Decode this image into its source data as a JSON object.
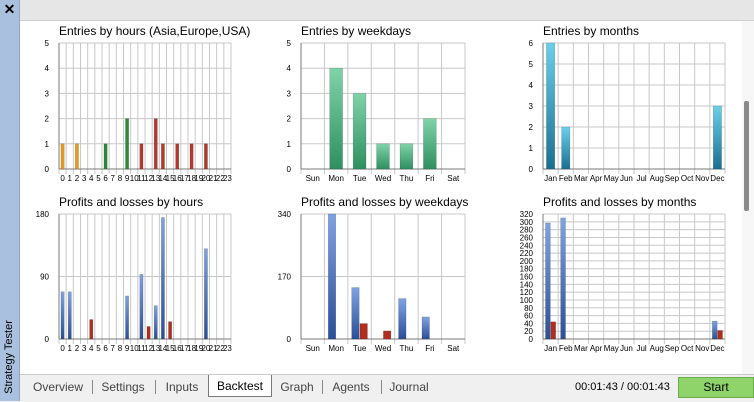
{
  "window": {
    "title": "Strategy Tester",
    "close_glyph": "✕"
  },
  "tabs": [
    {
      "label": "Overview",
      "active": false
    },
    {
      "label": "Settings",
      "active": false
    },
    {
      "label": "Inputs",
      "active": false
    },
    {
      "label": "Backtest",
      "active": true
    },
    {
      "label": "Graph",
      "active": false
    },
    {
      "label": "Agents",
      "active": false
    },
    {
      "label": "Journal",
      "active": false
    }
  ],
  "status": {
    "timer": "00:01:43 / 00:01:43",
    "start_label": "Start"
  },
  "colors": {
    "grid": "#c8c8c8",
    "axis": "#7a7a7a",
    "orange": "#e69b1e",
    "green": "#2e8b3a",
    "red": "#b23a2c",
    "mintGreen": "#5ab487",
    "teal": "#2a9bbf",
    "blue": "#4a74c0",
    "darkRed": "#b12e1f"
  },
  "chart_data": [
    {
      "type": "bar",
      "title": "Entries by hours (Asia,Europe,USA)",
      "categories": [
        "0",
        "1",
        "2",
        "3",
        "4",
        "5",
        "6",
        "7",
        "8",
        "9",
        "10",
        "11",
        "12",
        "13",
        "14",
        "15",
        "16",
        "17",
        "18",
        "19",
        "20",
        "21",
        "22",
        "23"
      ],
      "values": [
        1,
        0,
        1,
        0,
        0,
        0,
        1,
        0,
        0,
        2,
        0,
        1,
        0,
        2,
        1,
        0,
        1,
        0,
        1,
        0,
        1,
        0,
        0,
        0
      ],
      "bar_colors": [
        "orange",
        "orange",
        "orange",
        "orange",
        "orange",
        "orange",
        "green",
        "green",
        "green",
        "green",
        "red",
        "red",
        "red",
        "red",
        "red",
        "red",
        "red",
        "red",
        "red",
        "red",
        "red",
        "red",
        "red",
        "red"
      ],
      "ylim": [
        0,
        5
      ],
      "yticks": [
        0,
        1,
        2,
        3,
        4,
        5
      ]
    },
    {
      "type": "bar",
      "title": "Entries by weekdays",
      "categories": [
        "Sun",
        "Mon",
        "Tue",
        "Wed",
        "Thu",
        "Fri",
        "Sat"
      ],
      "values": [
        0,
        4,
        3,
        1,
        1,
        2,
        0
      ],
      "bar_colors": [
        "mintGreen",
        "mintGreen",
        "mintGreen",
        "mintGreen",
        "mintGreen",
        "mintGreen",
        "mintGreen"
      ],
      "ylim": [
        0,
        5
      ],
      "yticks": [
        0,
        1,
        2,
        3,
        4,
        5
      ]
    },
    {
      "type": "bar",
      "title": "Entries by months",
      "categories": [
        "Jan",
        "Feb",
        "Mar",
        "Apr",
        "May",
        "Jun",
        "Jul",
        "Aug",
        "Sep",
        "Oct",
        "Nov",
        "Dec"
      ],
      "values": [
        6,
        2,
        0,
        0,
        0,
        0,
        0,
        0,
        0,
        0,
        0,
        3
      ],
      "bar_colors": [
        "teal",
        "teal",
        "teal",
        "teal",
        "teal",
        "teal",
        "teal",
        "teal",
        "teal",
        "teal",
        "teal",
        "teal"
      ],
      "ylim": [
        0,
        6
      ],
      "yticks": [
        0,
        1,
        2,
        3,
        4,
        5,
        6
      ]
    },
    {
      "type": "bar",
      "title": "Profits and losses by hours",
      "categories": [
        "0",
        "1",
        "2",
        "3",
        "4",
        "5",
        "6",
        "7",
        "8",
        "9",
        "10",
        "11",
        "12",
        "13",
        "14",
        "15",
        "16",
        "17",
        "18",
        "19",
        "20",
        "21",
        "22",
        "23"
      ],
      "series": [
        {
          "color": "blue",
          "values": [
            68,
            68,
            0,
            0,
            0,
            0,
            0,
            0,
            0,
            62,
            0,
            93,
            0,
            48,
            175,
            0,
            0,
            0,
            0,
            0,
            130,
            0,
            0,
            0
          ]
        },
        {
          "color": "darkRed",
          "values": [
            0,
            0,
            0,
            0,
            28,
            0,
            0,
            0,
            0,
            0,
            0,
            0,
            18,
            0,
            0,
            25,
            0,
            0,
            0,
            0,
            0,
            0,
            0,
            0
          ]
        }
      ],
      "ylim": [
        0,
        180
      ],
      "yticks": [
        0,
        90,
        180
      ]
    },
    {
      "type": "bar",
      "title": "Profits and losses by weekdays",
      "categories": [
        "Sun",
        "Mon",
        "Tue",
        "Wed",
        "Thu",
        "Fri",
        "Sat"
      ],
      "series": [
        {
          "color": "blue",
          "values": [
            0,
            340,
            140,
            0,
            110,
            60,
            0
          ]
        },
        {
          "color": "darkRed",
          "values": [
            0,
            0,
            42,
            22,
            0,
            0,
            0
          ]
        }
      ],
      "ylim": [
        0,
        340
      ],
      "yticks": [
        0,
        170,
        340
      ]
    },
    {
      "type": "bar",
      "title": "Profits and losses by months",
      "categories": [
        "Jan",
        "Feb",
        "Mar",
        "Apr",
        "May",
        "Jun",
        "Jul",
        "Aug",
        "Sep",
        "Oct",
        "Nov",
        "Dec"
      ],
      "series": [
        {
          "color": "blue",
          "values": [
            297,
            310,
            0,
            0,
            0,
            0,
            0,
            0,
            0,
            0,
            0,
            46
          ]
        },
        {
          "color": "darkRed",
          "values": [
            44,
            0,
            0,
            0,
            0,
            0,
            0,
            0,
            0,
            0,
            0,
            22
          ]
        }
      ],
      "ylim": [
        0,
        320
      ],
      "yticks": [
        0,
        20,
        40,
        60,
        80,
        100,
        120,
        140,
        160,
        180,
        200,
        220,
        240,
        260,
        280,
        300,
        320
      ]
    }
  ]
}
